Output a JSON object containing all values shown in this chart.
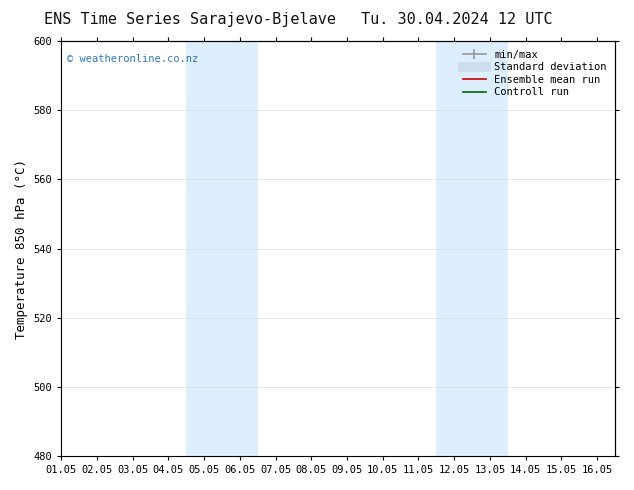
{
  "title_left": "ENS Time Series Sarajevo-Bjelave",
  "title_right": "Tu. 30.04.2024 12 UTC",
  "ylabel": "Temperature 850 hPa (°C)",
  "xlim": [
    0.0,
    15.5
  ],
  "ylim": [
    480,
    600
  ],
  "yticks": [
    480,
    500,
    520,
    540,
    560,
    580,
    600
  ],
  "xtick_labels": [
    "01.05",
    "02.05",
    "03.05",
    "04.05",
    "05.05",
    "06.05",
    "07.05",
    "08.05",
    "09.05",
    "10.05",
    "11.05",
    "12.05",
    "13.05",
    "14.05",
    "15.05",
    "16.05"
  ],
  "xtick_positions": [
    0.0,
    1.0,
    2.0,
    3.0,
    4.0,
    5.0,
    6.0,
    7.0,
    8.0,
    9.0,
    10.0,
    11.0,
    12.0,
    13.0,
    14.0,
    15.0
  ],
  "shaded_bands": [
    {
      "x_start": 3.5,
      "x_end": 5.5
    },
    {
      "x_start": 10.5,
      "x_end": 12.5
    }
  ],
  "shaded_color": "#ddeeff",
  "watermark_text": "© weatheronline.co.nz",
  "watermark_color": "#3377bb",
  "legend_entries": [
    {
      "label": "min/max",
      "color": "#999999",
      "lw": 1.2,
      "style": "line_with_caps"
    },
    {
      "label": "Standard deviation",
      "color": "#ccddee",
      "lw": 7,
      "style": "line"
    },
    {
      "label": "Ensemble mean run",
      "color": "#cc0000",
      "lw": 1.2,
      "style": "line"
    },
    {
      "label": "Controll run",
      "color": "#006600",
      "lw": 1.2,
      "style": "line"
    }
  ],
  "bg_color": "#ffffff",
  "axis_color": "#000000",
  "title_fontsize": 11,
  "tick_fontsize": 7.5,
  "ylabel_fontsize": 9,
  "legend_fontsize": 7.5
}
